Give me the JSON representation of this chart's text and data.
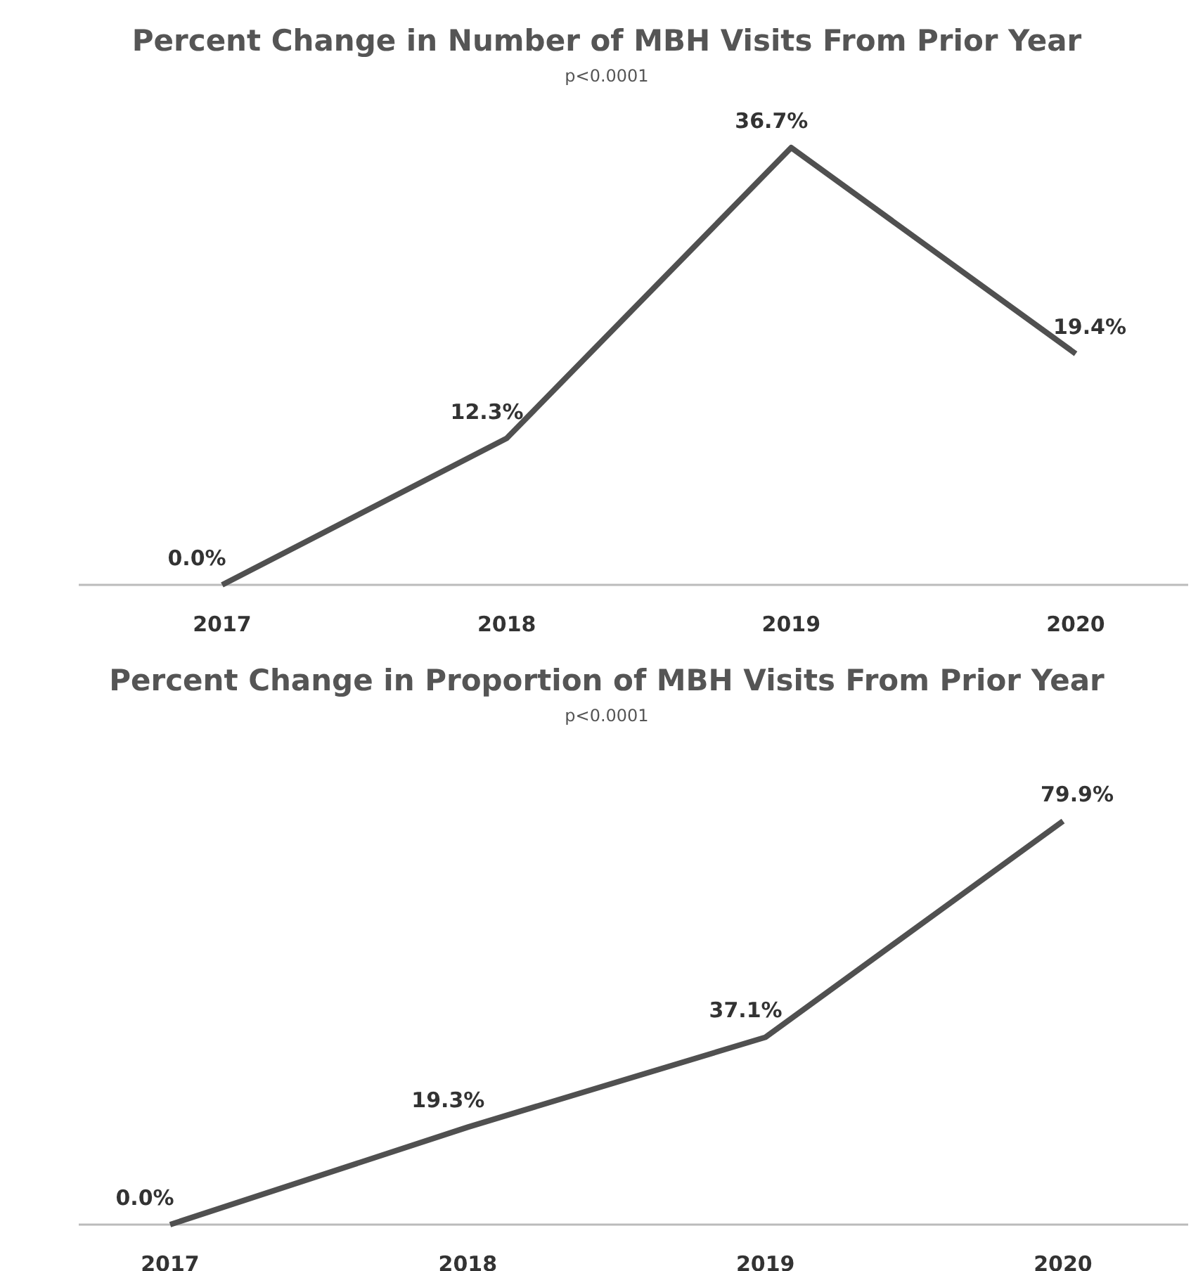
{
  "chart_data": [
    {
      "type": "line",
      "title": "Percent Change in Number of MBH Visits From Prior Year",
      "subtitle": "p<0.0001",
      "categories": [
        "2017",
        "2018",
        "2019",
        "2020"
      ],
      "series": [
        {
          "color": "#505050",
          "values": [
            0.0,
            12.3,
            36.7,
            19.4
          ],
          "value_labels": [
            "0.0%",
            "12.3%",
            "36.7%",
            "19.4%"
          ]
        }
      ],
      "marker": "none",
      "line_style": "solid",
      "grid": false,
      "tick_labels": "x"
    },
    {
      "type": "line",
      "title": "Percent Change in Proportion of MBH Visits From Prior Year",
      "subtitle": "p<0.0001",
      "categories": [
        "2017",
        "2018",
        "2019",
        "2020"
      ],
      "series": [
        {
          "color": "#505050",
          "values": [
            0.0,
            19.3,
            37.1,
            79.9
          ],
          "value_labels": [
            "0.0%",
            "19.3%",
            "37.1%",
            "79.9%"
          ]
        }
      ],
      "marker": "none",
      "line_style": "solid",
      "grid": false,
      "tick_labels": "x"
    }
  ]
}
